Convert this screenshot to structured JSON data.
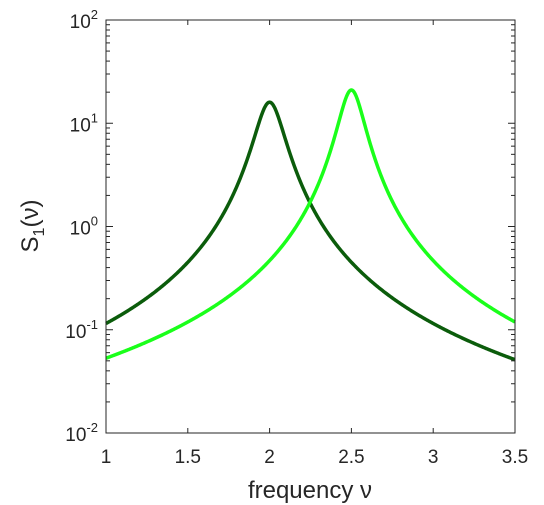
{
  "chart_data": {
    "type": "line",
    "title": "",
    "xlabel": "frequency ν",
    "ylabel": "S1(ν)",
    "ylabel_base": "S",
    "ylabel_sub": "1",
    "ylabel_arg": "(ν)",
    "xlim": [
      1,
      3.5
    ],
    "ylim": [
      0.01,
      100
    ],
    "yscale": "log",
    "grid": false,
    "legend": "none",
    "x_ticks": [
      1,
      1.5,
      2,
      2.5,
      3,
      3.5
    ],
    "x_tick_labels": [
      "1",
      "1.5",
      "2",
      "2.5",
      "3",
      "3.5"
    ],
    "y_ticks": [
      0.01,
      0.1,
      1,
      10,
      100
    ],
    "y_tick_base": "10",
    "y_tick_exponents": [
      "-2",
      "-1",
      "0",
      "1",
      "2"
    ],
    "series": [
      {
        "color": "#0b5c0b",
        "peak_x": 2.0,
        "peak_y": 16,
        "x": [
          1.0,
          1.25,
          1.5,
          1.75,
          1.9,
          2.0,
          2.1,
          2.25,
          2.5,
          2.75,
          3.0,
          3.25,
          3.5
        ],
        "y": [
          0.115,
          0.19,
          0.39,
          1.3,
          5.0,
          16,
          5.0,
          1.3,
          0.39,
          0.19,
          0.115,
          0.075,
          0.048
        ]
      },
      {
        "color": "#1aff1a",
        "peak_x": 2.5,
        "peak_y": 21,
        "x": [
          1.0,
          1.25,
          1.5,
          1.75,
          2.0,
          2.25,
          2.4,
          2.5,
          2.6,
          2.75,
          3.0,
          3.25,
          3.5
        ],
        "y": [
          0.053,
          0.075,
          0.12,
          0.2,
          0.4,
          1.4,
          6.5,
          21,
          6.5,
          1.4,
          0.4,
          0.2,
          0.1
        ]
      }
    ]
  }
}
